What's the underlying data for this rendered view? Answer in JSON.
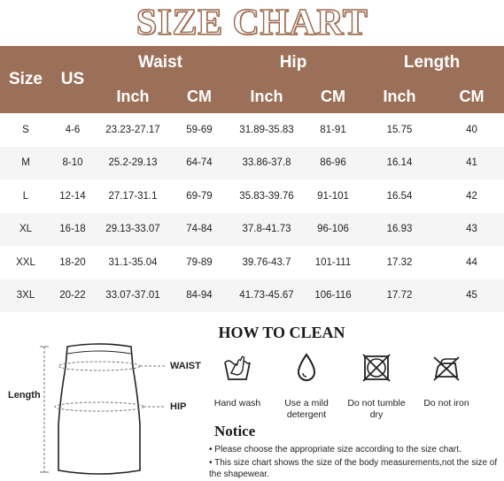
{
  "title": "SIZE CHART",
  "table": {
    "header": {
      "size": "Size",
      "us": "US",
      "waist": "Waist",
      "hip": "Hip",
      "length": "Length",
      "inch": "Inch",
      "cm": "CM"
    },
    "rows": [
      {
        "size": "S",
        "us": "4-6",
        "waist_in": "23.23-27.17",
        "waist_cm": "59-69",
        "hip_in": "31.89-35.83",
        "hip_cm": "81-91",
        "len_in": "15.75",
        "len_cm": "40"
      },
      {
        "size": "M",
        "us": "8-10",
        "waist_in": "25.2-29.13",
        "waist_cm": "64-74",
        "hip_in": "33.86-37.8",
        "hip_cm": "86-96",
        "len_in": "16.14",
        "len_cm": "41"
      },
      {
        "size": "L",
        "us": "12-14",
        "waist_in": "27.17-31.1",
        "waist_cm": "69-79",
        "hip_in": "35.83-39.76",
        "hip_cm": "91-101",
        "len_in": "16.54",
        "len_cm": "42"
      },
      {
        "size": "XL",
        "us": "16-18",
        "waist_in": "29.13-33.07",
        "waist_cm": "74-84",
        "hip_in": "37.8-41.73",
        "hip_cm": "96-106",
        "len_in": "16.93",
        "len_cm": "43"
      },
      {
        "size": "XXL",
        "us": "18-20",
        "waist_in": "31.1-35.04",
        "waist_cm": "79-89",
        "hip_in": "39.76-43.7",
        "hip_cm": "101-111",
        "len_in": "17.32",
        "len_cm": "44"
      },
      {
        "size": "3XL",
        "us": "20-22",
        "waist_in": "33.07-37.01",
        "waist_cm": "84-94",
        "hip_in": "41.73-45.67",
        "hip_cm": "106-116",
        "len_in": "17.72",
        "len_cm": "45"
      }
    ]
  },
  "diagram": {
    "length_label": "Length",
    "waist_label": "WAIST",
    "hip_label": "HIP"
  },
  "how_to_clean": {
    "title": "HOW TO CLEAN",
    "items": [
      {
        "icon": "hand-wash-icon",
        "label": "Hand wash"
      },
      {
        "icon": "mild-detergent-icon",
        "label": "Use a mild detergent"
      },
      {
        "icon": "no-tumble-dry-icon",
        "label": "Do not tumble dry"
      },
      {
        "icon": "no-iron-icon",
        "label": "Do not iron"
      }
    ]
  },
  "notice": {
    "title": "Notice",
    "lines": [
      "• Please choose the appropriate size according to the size chart.",
      "• This size chart shows the size of the body measurements,not the size of the shapewear."
    ]
  },
  "colors": {
    "header_brown": "#9c7058",
    "title_outline": "#9c6a4f",
    "row_stripe": "#f5f5f5"
  }
}
